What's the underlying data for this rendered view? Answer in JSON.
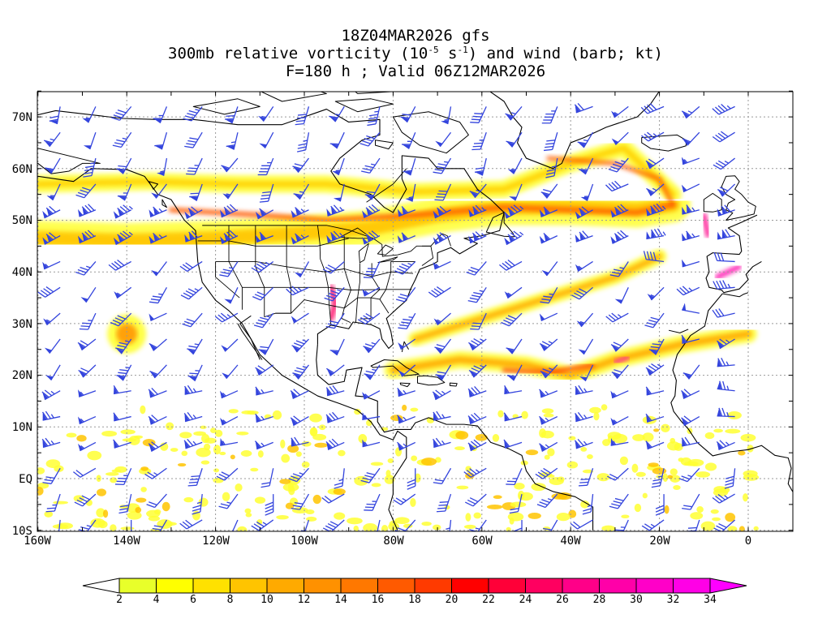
{
  "title": {
    "line1": "18Z04MAR2026 gfs",
    "line2_prefix": "300mb relative vorticity (10",
    "line2_exp1": "-5",
    "line2_mid": " s",
    "line2_exp2": "-1",
    "line2_suffix": ") and wind (barb; kt)",
    "line3": "F=180 h ; Valid 06Z12MAR2026"
  },
  "lat_labels": [
    "70N",
    "60N",
    "50N",
    "40N",
    "30N",
    "20N",
    "10N",
    "EQ",
    "10S"
  ],
  "lon_labels": [
    "160W",
    "140W",
    "120W",
    "100W",
    "80W",
    "60W",
    "40W",
    "20W",
    "0"
  ],
  "colorbar": {
    "labels": [
      "2",
      "4",
      "6",
      "8",
      "10",
      "12",
      "14",
      "16",
      "18",
      "20",
      "22",
      "24",
      "26",
      "28",
      "30",
      "32",
      "34"
    ],
    "colors": [
      "#ffffff",
      "#e8ff2a",
      "#ffff00",
      "#ffe100",
      "#ffc400",
      "#ffaa00",
      "#ff9100",
      "#ff7800",
      "#ff5a00",
      "#ff3a00",
      "#ff0000",
      "#ff0038",
      "#ff0060",
      "#ff0088",
      "#ff00a8",
      "#ff00c8",
      "#ff00e6",
      "#ff00ff"
    ]
  },
  "colors": {
    "barb": "#3344dd",
    "coast": "#000000",
    "grid": "#999999"
  }
}
